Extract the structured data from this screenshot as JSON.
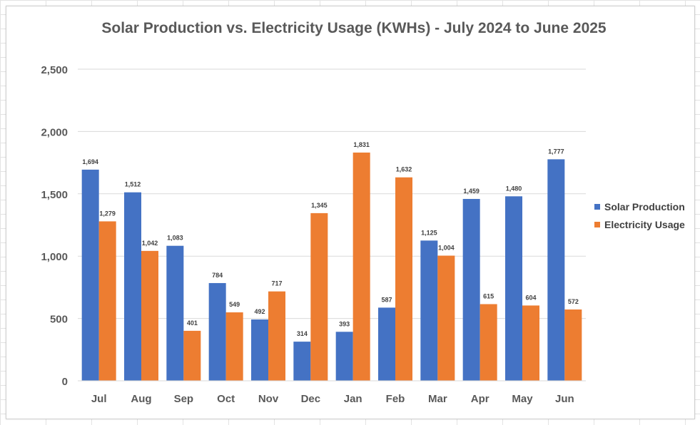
{
  "chart_data": {
    "type": "bar",
    "title": "Solar Production vs. Electricity Usage (KWHs) - July 2024 to June 2025",
    "xlabel": "",
    "ylabel": "",
    "ylim": [
      0,
      2500
    ],
    "yticks": [
      "0",
      "500",
      "1,000",
      "1,500",
      "2,000",
      "2,500"
    ],
    "ytick_values": [
      0,
      500,
      1000,
      1500,
      2000,
      2500
    ],
    "grid": true,
    "legend_position": "right",
    "categories": [
      "Jul",
      "Aug",
      "Sep",
      "Oct",
      "Nov",
      "Dec",
      "Jan",
      "Feb",
      "Mar",
      "Apr",
      "May",
      "Jun"
    ],
    "series": [
      {
        "name": "Solar Production",
        "color": "#4472C4",
        "values": [
          1694,
          1512,
          1083,
          784,
          492,
          314,
          393,
          587,
          1125,
          1459,
          1480,
          1777
        ],
        "labels": [
          "1,694",
          "1,512",
          "1,083",
          "784",
          "492",
          "314",
          "393",
          "587",
          "1,125",
          "1,459",
          "1,480",
          "1,777"
        ]
      },
      {
        "name": "Electricity Usage",
        "color": "#ED7D31",
        "values": [
          1279,
          1042,
          401,
          549,
          717,
          1345,
          1831,
          1632,
          1004,
          615,
          604,
          572
        ],
        "labels": [
          "1,279",
          "1,042",
          "401",
          "549",
          "717",
          "1,345",
          "1,831",
          "1,632",
          "1,004",
          "615",
          "604",
          "572"
        ]
      }
    ]
  }
}
